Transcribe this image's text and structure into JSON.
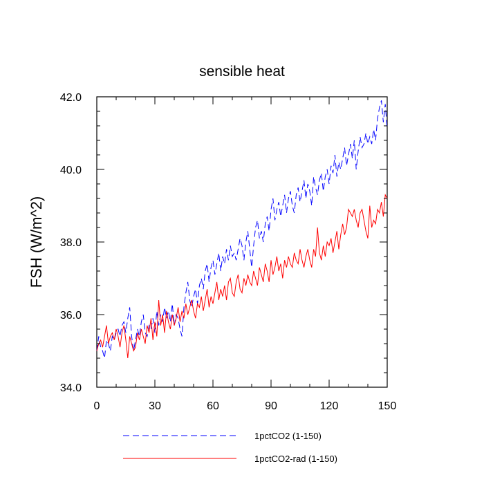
{
  "chart_data": {
    "type": "line",
    "title": "sensible heat",
    "xlabel": "",
    "ylabel": "FSH  (W/m^2)",
    "xlim": [
      0,
      150
    ],
    "ylim": [
      34.0,
      42.0
    ],
    "xticks": [
      0,
      30,
      60,
      90,
      120,
      150
    ],
    "xtick_labels": [
      "0",
      "30",
      "60",
      "90",
      "120",
      "150"
    ],
    "yticks": [
      34.0,
      36.0,
      38.0,
      40.0,
      42.0
    ],
    "ytick_labels": [
      "34.0",
      "36.0",
      "38.0",
      "40.0",
      "42.0"
    ],
    "grid": false,
    "legend_position": "bottom",
    "series": [
      {
        "name": "1pctCO2 (1-150)",
        "color": "#0000ff",
        "dash": "dashed",
        "x": [
          0,
          1,
          2,
          3,
          4,
          5,
          6,
          7,
          8,
          9,
          10,
          11,
          12,
          13,
          14,
          15,
          16,
          17,
          18,
          19,
          20,
          21,
          22,
          23,
          24,
          25,
          26,
          27,
          28,
          29,
          30,
          31,
          32,
          33,
          34,
          35,
          36,
          37,
          38,
          39,
          40,
          41,
          42,
          43,
          44,
          45,
          46,
          47,
          48,
          49,
          50,
          51,
          52,
          53,
          54,
          55,
          56,
          57,
          58,
          59,
          60,
          61,
          62,
          63,
          64,
          65,
          66,
          67,
          68,
          69,
          70,
          71,
          72,
          73,
          74,
          75,
          76,
          77,
          78,
          79,
          80,
          81,
          82,
          83,
          84,
          85,
          86,
          87,
          88,
          89,
          90,
          91,
          92,
          93,
          94,
          95,
          96,
          97,
          98,
          99,
          100,
          101,
          102,
          103,
          104,
          105,
          106,
          107,
          108,
          109,
          110,
          111,
          112,
          113,
          114,
          115,
          116,
          117,
          118,
          119,
          120,
          121,
          122,
          123,
          124,
          125,
          126,
          127,
          128,
          129,
          130,
          131,
          132,
          133,
          134,
          135,
          136,
          137,
          138,
          139,
          140,
          141,
          142,
          143,
          144,
          145,
          146,
          147,
          148,
          149,
          150
        ],
        "values": [
          35.0,
          35.4,
          35.1,
          35.0,
          34.8,
          35.3,
          35.2,
          35.0,
          35.4,
          35.3,
          35.5,
          35.6,
          35.4,
          35.7,
          35.8,
          35.5,
          35.9,
          36.2,
          35.4,
          35.0,
          35.3,
          35.6,
          35.4,
          35.8,
          36.0,
          35.5,
          35.4,
          35.7,
          35.6,
          35.9,
          35.5,
          36.1,
          35.7,
          36.0,
          35.8,
          36.2,
          35.9,
          36.1,
          35.8,
          36.3,
          35.7,
          36.0,
          35.9,
          35.6,
          35.4,
          36.2,
          36.6,
          36.9,
          36.4,
          36.2,
          36.5,
          36.7,
          36.3,
          36.8,
          37.0,
          36.7,
          37.2,
          37.4,
          36.9,
          37.3,
          37.5,
          37.1,
          37.4,
          37.7,
          37.2,
          37.6,
          37.4,
          37.8,
          37.5,
          37.9,
          37.6,
          37.7,
          37.5,
          37.8,
          38.1,
          37.9,
          37.5,
          38.0,
          38.3,
          37.8,
          37.3,
          37.9,
          38.4,
          38.6,
          38.1,
          38.3,
          38.0,
          38.5,
          38.7,
          38.3,
          38.9,
          39.2,
          38.6,
          38.9,
          39.1,
          38.7,
          39.0,
          39.3,
          38.8,
          39.2,
          39.4,
          39.0,
          38.8,
          39.3,
          39.5,
          39.1,
          39.4,
          39.7,
          39.2,
          39.6,
          39.4,
          39.0,
          39.8,
          39.5,
          39.3,
          39.7,
          39.9,
          39.4,
          39.8,
          40.0,
          39.6,
          40.1,
          39.9,
          40.4,
          39.8,
          40.2,
          40.0,
          40.3,
          40.6,
          40.1,
          40.4,
          40.7,
          40.3,
          40.8,
          40.0,
          40.5,
          40.9,
          40.6,
          40.7,
          41.0,
          40.7,
          40.9,
          40.7,
          41.1,
          40.8,
          41.4,
          41.7,
          41.9,
          41.3,
          41.8,
          41.1
        ]
      },
      {
        "name": "1pctCO2-rad (1-150)",
        "color": "#ff0000",
        "dash": "solid",
        "x": [
          0,
          1,
          2,
          3,
          4,
          5,
          6,
          7,
          8,
          9,
          10,
          11,
          12,
          13,
          14,
          15,
          16,
          17,
          18,
          19,
          20,
          21,
          22,
          23,
          24,
          25,
          26,
          27,
          28,
          29,
          30,
          31,
          32,
          33,
          34,
          35,
          36,
          37,
          38,
          39,
          40,
          41,
          42,
          43,
          44,
          45,
          46,
          47,
          48,
          49,
          50,
          51,
          52,
          53,
          54,
          55,
          56,
          57,
          58,
          59,
          60,
          61,
          62,
          63,
          64,
          65,
          66,
          67,
          68,
          69,
          70,
          71,
          72,
          73,
          74,
          75,
          76,
          77,
          78,
          79,
          80,
          81,
          82,
          83,
          84,
          85,
          86,
          87,
          88,
          89,
          90,
          91,
          92,
          93,
          94,
          95,
          96,
          97,
          98,
          99,
          100,
          101,
          102,
          103,
          104,
          105,
          106,
          107,
          108,
          109,
          110,
          111,
          112,
          113,
          114,
          115,
          116,
          117,
          118,
          119,
          120,
          121,
          122,
          123,
          124,
          125,
          126,
          127,
          128,
          129,
          130,
          131,
          132,
          133,
          134,
          135,
          136,
          137,
          138,
          139,
          140,
          141,
          142,
          143,
          144,
          145,
          146,
          147,
          148,
          149,
          150
        ],
        "values": [
          35.0,
          35.2,
          35.3,
          35.1,
          35.4,
          35.7,
          35.2,
          35.4,
          35.5,
          35.3,
          35.6,
          35.4,
          35.1,
          35.5,
          35.7,
          35.3,
          34.8,
          35.4,
          35.2,
          35.0,
          35.1,
          35.5,
          35.3,
          35.6,
          35.4,
          35.2,
          35.7,
          35.5,
          35.9,
          35.3,
          35.8,
          35.4,
          36.4,
          35.7,
          36.0,
          35.5,
          36.1,
          35.8,
          35.6,
          36.0,
          35.7,
          35.9,
          36.2,
          35.8,
          36.1,
          35.9,
          36.3,
          36.0,
          36.2,
          36.4,
          36.1,
          35.9,
          36.3,
          36.2,
          36.5,
          36.1,
          36.4,
          36.7,
          36.2,
          36.5,
          36.3,
          36.6,
          36.9,
          36.4,
          36.7,
          36.5,
          36.8,
          36.4,
          36.9,
          37.0,
          36.6,
          36.5,
          36.9,
          37.1,
          36.7,
          36.6,
          37.0,
          36.8,
          37.1,
          36.9,
          36.8,
          37.2,
          37.0,
          36.8,
          37.3,
          37.1,
          36.9,
          37.4,
          37.2,
          36.9,
          37.5,
          37.1,
          37.3,
          37.6,
          37.2,
          37.4,
          37.0,
          37.5,
          37.3,
          37.6,
          37.4,
          37.3,
          37.7,
          37.5,
          37.4,
          37.8,
          37.5,
          37.3,
          37.6,
          37.8,
          37.5,
          37.3,
          37.8,
          37.6,
          38.4,
          37.7,
          37.5,
          37.9,
          37.6,
          38.0,
          37.9,
          38.1,
          37.7,
          38.0,
          38.3,
          37.8,
          38.2,
          38.5,
          38.2,
          38.4,
          38.9,
          38.8,
          38.7,
          38.9,
          38.6,
          38.4,
          38.8,
          38.9,
          38.6,
          38.3,
          38.1,
          39.0,
          38.4,
          38.6,
          38.5,
          38.9,
          38.8,
          39.1,
          38.7,
          39.3,
          39.2
        ]
      }
    ]
  }
}
